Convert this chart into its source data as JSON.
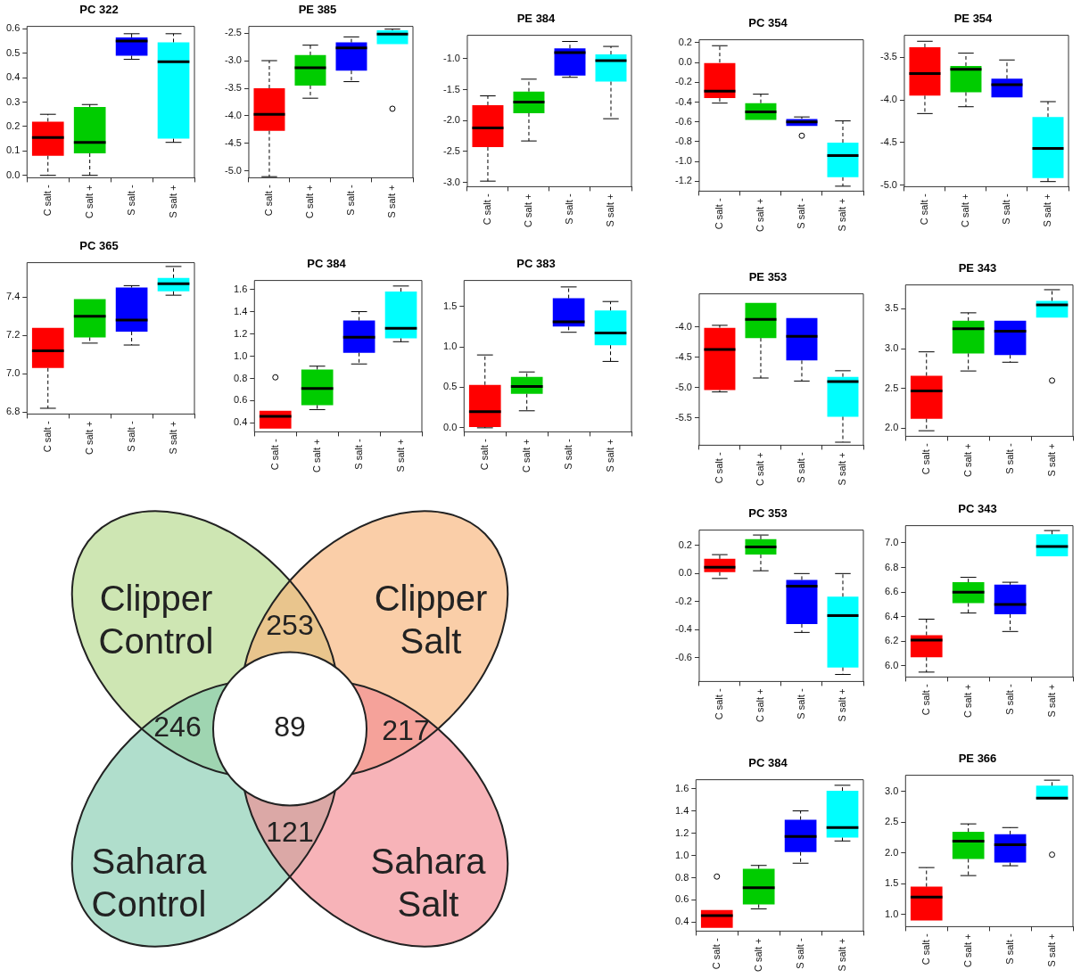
{
  "chart_data": [
    {
      "type": "box",
      "title": "PC 322",
      "categories": [
        "C salt -",
        "C salt +",
        "S salt -",
        "S salt +"
      ],
      "colors": [
        "#ff0000",
        "#00cc00",
        "#0000ff",
        "#00ffff"
      ],
      "ylim": [
        -0.01,
        0.61
      ],
      "yticks": [
        {
          "value": 0,
          "label": "0.0"
        },
        0.1,
        0.2,
        0.3,
        0.4,
        0.5,
        0.6
      ],
      "boxes": [
        {
          "low": 0,
          "q1": 0.08,
          "median": 0.155,
          "q3": 0.22,
          "high": 0.25
        },
        {
          "low": 0,
          "q1": 0.09,
          "median": 0.135,
          "q3": 0.28,
          "high": 0.29
        },
        {
          "low": 0.475,
          "q1": 0.49,
          "median": 0.55,
          "q3": 0.565,
          "high": 0.58
        },
        {
          "low": 0.135,
          "q1": 0.15,
          "median": 0.465,
          "q3": 0.545,
          "high": 0.58
        }
      ]
    },
    {
      "type": "box",
      "title": "PE 385",
      "categories": [
        "C salt -",
        "C salt +",
        "S salt -",
        "S salt +"
      ],
      "colors": [
        "#ff0000",
        "#00cc00",
        "#0000ff",
        "#00ffff"
      ],
      "ylim": [
        -5.12,
        -2.38
      ],
      "yticks": [
        {
          "value": -5,
          "label": "-5.0"
        },
        -4.5,
        {
          "value": -4,
          "label": "-4.0"
        },
        -3.5,
        {
          "value": -3,
          "label": "-3.0"
        },
        -2.5
      ],
      "boxes": [
        {
          "low": -5.1,
          "q1": -4.27,
          "median": -3.97,
          "q3": -3.5,
          "high": -3.0
        },
        {
          "low": -3.68,
          "q1": -3.45,
          "median": -3.13,
          "q3": -2.9,
          "high": -2.72
        },
        {
          "low": -3.38,
          "q1": -3.18,
          "median": -2.77,
          "q3": -2.67,
          "high": -2.57
        },
        {
          "low": -2.7,
          "q1": -2.7,
          "median": -2.52,
          "q3": -2.45,
          "high": -2.43,
          "outliers": [
            -3.87
          ]
        }
      ]
    },
    {
      "type": "box",
      "title": "PE 384",
      "categories": [
        "C salt -",
        "C salt +",
        "S salt -",
        "S salt +"
      ],
      "colors": [
        "#ff0000",
        "#00cc00",
        "#0000ff",
        "#00ffff"
      ],
      "ylim": [
        -3.07,
        -0.62
      ],
      "yticks": [
        {
          "value": -3,
          "label": "-3.0"
        },
        -2.5,
        {
          "value": -2,
          "label": "-2.0"
        },
        -1.5,
        {
          "value": -1,
          "label": "-1.0"
        }
      ],
      "boxes": [
        {
          "low": -2.98,
          "q1": -2.43,
          "median": -2.12,
          "q3": -1.75,
          "high": -1.6
        },
        {
          "low": -2.33,
          "q1": -1.88,
          "median": -1.7,
          "q3": -1.53,
          "high": -1.33
        },
        {
          "low": -1.3,
          "q1": -1.27,
          "median": -0.9,
          "q3": -0.83,
          "high": -0.72
        },
        {
          "low": -1.97,
          "q1": -1.37,
          "median": -1.03,
          "q3": -0.93,
          "high": -0.8
        }
      ]
    },
    {
      "type": "box",
      "title": "PC 354",
      "categories": [
        "C salt -",
        "C salt +",
        "S salt -",
        "S salt +"
      ],
      "colors": [
        "#ff0000",
        "#00cc00",
        "#0000ff",
        "#00ffff"
      ],
      "ylim": [
        -1.3,
        0.23
      ],
      "yticks": [
        {
          "value": -1.2,
          "label": "-1.2"
        },
        {
          "value": -1,
          "label": "-1.0"
        },
        -0.8,
        -0.6,
        -0.4,
        -0.2,
        {
          "value": 0,
          "label": "0.0"
        },
        0.2
      ],
      "boxes": [
        {
          "low": -0.41,
          "q1": -0.36,
          "median": -0.29,
          "q3": 0,
          "high": 0.17
        },
        {
          "low": -0.58,
          "q1": -0.58,
          "median": -0.5,
          "q3": -0.41,
          "high": -0.32
        },
        {
          "low": -0.64,
          "q1": -0.64,
          "median": -0.6,
          "q3": -0.57,
          "high": -0.55,
          "outliers": [
            -0.74
          ]
        },
        {
          "low": -1.25,
          "q1": -1.16,
          "median": -0.94,
          "q3": -0.81,
          "high": -0.59
        }
      ]
    },
    {
      "type": "box",
      "title": "PE 354",
      "categories": [
        "C salt -",
        "C salt +",
        "S salt -",
        "S salt +"
      ],
      "colors": [
        "#ff0000",
        "#00cc00",
        "#0000ff",
        "#00ffff"
      ],
      "ylim": [
        -5.02,
        -3.24
      ],
      "yticks": [
        {
          "value": -5,
          "label": "-5.0"
        },
        -4.5,
        {
          "value": -4,
          "label": "-4.0"
        },
        -3.5
      ],
      "boxes": [
        {
          "low": -4.16,
          "q1": -3.95,
          "median": -3.69,
          "q3": -3.38,
          "high": -3.31
        },
        {
          "low": -4.08,
          "q1": -3.91,
          "median": -3.64,
          "q3": -3.6,
          "high": -3.45
        },
        {
          "low": -3.97,
          "q1": -3.97,
          "median": -3.82,
          "q3": -3.75,
          "high": -3.53
        },
        {
          "low": -4.96,
          "q1": -4.92,
          "median": -4.57,
          "q3": -4.2,
          "high": -4.02
        }
      ]
    },
    {
      "type": "box",
      "title": "PC 365",
      "categories": [
        "C salt -",
        "C salt +",
        "S salt -",
        "S salt +"
      ],
      "colors": [
        "#ff0000",
        "#00cc00",
        "#0000ff",
        "#00ffff"
      ],
      "ylim": [
        6.79,
        7.58
      ],
      "yticks": [
        6.8,
        {
          "value": 7,
          "label": "7.0"
        },
        7.2,
        7.4
      ],
      "boxes": [
        {
          "low": 6.82,
          "q1": 7.03,
          "median": 7.12,
          "q3": 7.24,
          "high": 7.24
        },
        {
          "low": 7.16,
          "q1": 7.19,
          "median": 7.3,
          "q3": 7.39,
          "high": 7.39
        },
        {
          "low": 7.15,
          "q1": 7.22,
          "median": 7.28,
          "q3": 7.45,
          "high": 7.46
        },
        {
          "low": 7.41,
          "q1": 7.43,
          "median": 7.47,
          "q3": 7.5,
          "high": 7.56
        }
      ]
    },
    {
      "type": "box",
      "title": "PC 384",
      "categories": [
        "C salt -",
        "C salt +",
        "S salt -",
        "S salt +"
      ],
      "colors": [
        "#ff0000",
        "#00cc00",
        "#0000ff",
        "#00ffff"
      ],
      "ylim": [
        0.32,
        1.68
      ],
      "yticks": [
        0.4,
        0.6,
        0.8,
        {
          "value": 1,
          "label": "1.0"
        },
        1.2,
        1.4,
        1.6
      ],
      "boxes": [
        {
          "low": 0.35,
          "q1": 0.35,
          "median": 0.46,
          "q3": 0.51,
          "high": 0.51,
          "outliers": [
            0.81
          ]
        },
        {
          "low": 0.52,
          "q1": 0.56,
          "median": 0.71,
          "q3": 0.88,
          "high": 0.91
        },
        {
          "low": 0.93,
          "q1": 1.03,
          "median": 1.17,
          "q3": 1.32,
          "high": 1.4
        },
        {
          "low": 1.13,
          "q1": 1.16,
          "median": 1.25,
          "q3": 1.58,
          "high": 1.63
        }
      ]
    },
    {
      "type": "box",
      "title": "PC 383",
      "categories": [
        "C salt -",
        "C salt +",
        "S salt -",
        "S salt +"
      ],
      "colors": [
        "#ff0000",
        "#00cc00",
        "#0000ff",
        "#00ffff"
      ],
      "ylim": [
        -0.05,
        1.82
      ],
      "yticks": [
        {
          "value": 0,
          "label": "0.0"
        },
        0.5,
        {
          "value": 1,
          "label": "1.0"
        },
        1.5
      ],
      "boxes": [
        {
          "low": 0,
          "q1": 0.01,
          "median": 0.2,
          "q3": 0.53,
          "high": 0.9
        },
        {
          "low": 0.21,
          "q1": 0.42,
          "median": 0.51,
          "q3": 0.63,
          "high": 0.69
        },
        {
          "low": 1.18,
          "q1": 1.25,
          "median": 1.31,
          "q3": 1.6,
          "high": 1.74
        },
        {
          "low": 0.82,
          "q1": 1.02,
          "median": 1.17,
          "q3": 1.45,
          "high": 1.56
        }
      ]
    },
    {
      "type": "box",
      "title": "PE 353",
      "categories": [
        "C salt -",
        "C salt +",
        "S salt -",
        "S salt +"
      ],
      "colors": [
        "#ff0000",
        "#00cc00",
        "#0000ff",
        "#00ffff"
      ],
      "ylim": [
        -5.95,
        -3.45
      ],
      "yticks": [
        -5.5,
        {
          "value": -5,
          "label": "-5.0"
        },
        -4.5,
        {
          "value": -4,
          "label": "-4.0"
        }
      ],
      "boxes": [
        {
          "low": -5.07,
          "q1": -5.04,
          "median": -4.37,
          "q3": -4.01,
          "high": -3.97
        },
        {
          "low": -4.84,
          "q1": -4.18,
          "median": -3.87,
          "q3": -3.6,
          "high": -3.6
        },
        {
          "low": -4.89,
          "q1": -4.55,
          "median": -4.15,
          "q3": -3.85,
          "high": -3.85
        },
        {
          "low": -5.9,
          "q1": -5.48,
          "median": -4.9,
          "q3": -4.82,
          "high": -4.72
        }
      ]
    },
    {
      "type": "box",
      "title": "PE 343",
      "categories": [
        "C salt -",
        "C salt +",
        "S salt -",
        "S salt +"
      ],
      "colors": [
        "#ff0000",
        "#00cc00",
        "#0000ff",
        "#00ffff"
      ],
      "ylim": [
        1.9,
        3.8
      ],
      "yticks": [
        {
          "value": 2,
          "label": "2.0"
        },
        2.5,
        {
          "value": 3,
          "label": "3.0"
        },
        3.5
      ],
      "boxes": [
        {
          "low": 1.97,
          "q1": 2.12,
          "median": 2.47,
          "q3": 2.66,
          "high": 2.96
        },
        {
          "low": 2.72,
          "q1": 2.94,
          "median": 3.25,
          "q3": 3.35,
          "high": 3.45
        },
        {
          "low": 2.83,
          "q1": 2.92,
          "median": 3.22,
          "q3": 3.35,
          "high": 3.35
        },
        {
          "low": 3.39,
          "q1": 3.39,
          "median": 3.55,
          "q3": 3.6,
          "high": 3.74,
          "outliers": [
            2.6
          ]
        }
      ]
    },
    {
      "type": "other",
      "categories": [
        "Clipper Control",
        "Clipper Salt",
        "Sahara Control",
        "Sahara Salt"
      ],
      "colors": [
        "#b3d98a",
        "#f7b47a",
        "#86cdb0",
        "#f28a92"
      ],
      "annotations": [
        "253",
        "246",
        "89",
        "217",
        "121"
      ]
    },
    {
      "type": "box",
      "title": "PC 353",
      "categories": [
        "C salt -",
        "C salt +",
        "S salt -",
        "S salt +"
      ],
      "colors": [
        "#ff0000",
        "#00cc00",
        "#0000ff",
        "#00ffff"
      ],
      "ylim": [
        -0.77,
        0.31
      ],
      "yticks": [
        -0.6,
        -0.4,
        -0.2,
        {
          "value": 0,
          "label": "0.0"
        },
        0.2
      ],
      "boxes": [
        {
          "low": -0.035,
          "q1": 0.01,
          "median": 0.045,
          "q3": 0.105,
          "high": 0.135
        },
        {
          "low": 0.02,
          "q1": 0.135,
          "median": 0.19,
          "q3": 0.245,
          "high": 0.275
        },
        {
          "low": -0.42,
          "q1": -0.36,
          "median": -0.09,
          "q3": -0.045,
          "high": 0
        },
        {
          "low": -0.72,
          "q1": -0.67,
          "median": -0.3,
          "q3": -0.165,
          "high": 0
        }
      ]
    },
    {
      "type": "box",
      "title": "PC 343",
      "categories": [
        "C salt -",
        "C salt +",
        "S salt -",
        "S salt +"
      ],
      "colors": [
        "#ff0000",
        "#00cc00",
        "#0000ff",
        "#00ffff"
      ],
      "ylim": [
        5.91,
        7.14
      ],
      "yticks": [
        {
          "value": 6,
          "label": "6.0"
        },
        6.2,
        6.4,
        6.6,
        6.8,
        {
          "value": 7,
          "label": "7.0"
        }
      ],
      "boxes": [
        {
          "low": 5.95,
          "q1": 6.07,
          "median": 6.21,
          "q3": 6.25,
          "high": 6.38
        },
        {
          "low": 6.43,
          "q1": 6.51,
          "median": 6.6,
          "q3": 6.68,
          "high": 6.72
        },
        {
          "low": 6.28,
          "q1": 6.42,
          "median": 6.5,
          "q3": 6.66,
          "high": 6.68
        },
        {
          "low": 6.89,
          "q1": 6.89,
          "median": 6.97,
          "q3": 7.07,
          "high": 7.1
        }
      ]
    },
    {
      "type": "box",
      "title": "PC 384",
      "categories": [
        "C salt -",
        "C salt +",
        "S salt -",
        "S salt +"
      ],
      "colors": [
        "#ff0000",
        "#00cc00",
        "#0000ff",
        "#00ffff"
      ],
      "ylim": [
        0.32,
        1.68
      ],
      "yticks": [
        0.4,
        0.6,
        0.8,
        {
          "value": 1,
          "label": "1.0"
        },
        1.2,
        1.4,
        1.6
      ],
      "boxes": [
        {
          "low": 0.35,
          "q1": 0.35,
          "median": 0.46,
          "q3": 0.51,
          "high": 0.51,
          "outliers": [
            0.81
          ]
        },
        {
          "low": 0.52,
          "q1": 0.56,
          "median": 0.71,
          "q3": 0.88,
          "high": 0.91
        },
        {
          "low": 0.93,
          "q1": 1.03,
          "median": 1.17,
          "q3": 1.32,
          "high": 1.4
        },
        {
          "low": 1.13,
          "q1": 1.16,
          "median": 1.25,
          "q3": 1.58,
          "high": 1.63
        }
      ]
    },
    {
      "type": "box",
      "title": "PE 366",
      "categories": [
        "C salt -",
        "C salt +",
        "S salt -",
        "S salt +"
      ],
      "colors": [
        "#ff0000",
        "#00cc00",
        "#0000ff",
        "#00ffff"
      ],
      "ylim": [
        0.8,
        3.26
      ],
      "yticks": [
        {
          "value": 1,
          "label": "1.0"
        },
        1.5,
        {
          "value": 2,
          "label": "2.0"
        },
        2.5,
        {
          "value": 3,
          "label": "3.0"
        }
      ],
      "boxes": [
        {
          "low": 0.9,
          "q1": 0.9,
          "median": 1.28,
          "q3": 1.45,
          "high": 1.76
        },
        {
          "low": 1.63,
          "q1": 1.9,
          "median": 2.19,
          "q3": 2.34,
          "high": 2.47
        },
        {
          "low": 1.79,
          "q1": 1.84,
          "median": 2.13,
          "q3": 2.3,
          "high": 2.41
        },
        {
          "low": 2.87,
          "q1": 2.87,
          "median": 2.89,
          "q3": 3.09,
          "high": 3.18,
          "outliers": [
            1.97
          ]
        }
      ]
    }
  ]
}
